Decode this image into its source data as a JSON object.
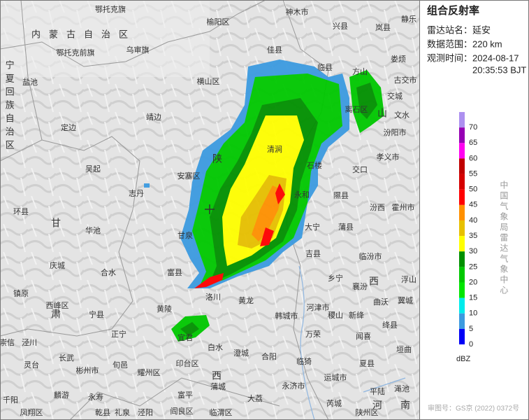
{
  "panel": {
    "title": "组合反射率",
    "fields": [
      {
        "label": "雷达站名：",
        "value": [
          "延安"
        ]
      },
      {
        "label": "数据范围：",
        "value": [
          "220 km"
        ]
      },
      {
        "label": "观测时间：",
        "value": [
          "2024-08-17",
          "20:35:53 BJT"
        ]
      }
    ]
  },
  "legend": {
    "levels": [
      70,
      65,
      60,
      55,
      50,
      45,
      40,
      35,
      30,
      25,
      20,
      15,
      10,
      5,
      0
    ],
    "colors": [
      "#ad90f0",
      "#9600b4",
      "#ff00f0",
      "#c00000",
      "#d60000",
      "#ff0000",
      "#ff9000",
      "#e7c000",
      "#ffff00",
      "#019000",
      "#00c800",
      "#00e600",
      "#00ecec",
      "#3c9be0",
      "#0000f6"
    ],
    "unit": "dBZ"
  },
  "credit": "中国气象局雷达气象中心",
  "approval": "审图号：GS京 (2022) 0372号",
  "regions": [
    "内蒙古自治区",
    "宁夏回族自治区",
    "陕",
    "西",
    "山",
    "西",
    "甘",
    "肃",
    "河",
    "南"
  ],
  "places": [
    "鄂托克旗",
    "神木市",
    "兴县",
    "岚县",
    "静乐",
    "榆阳区",
    "佳县",
    "临县",
    "方山",
    "娄烦",
    "古交市",
    "鄂托克前旗",
    "乌审旗",
    "盐池",
    "横山区",
    "离石区",
    "交城",
    "文水",
    "汾阳市",
    "定边",
    "靖边",
    "孝义市",
    "吴起",
    "安塞区",
    "清涧",
    "石楼",
    "交口",
    "志丹",
    "永和",
    "隰县",
    "汾西",
    "霍州市",
    "环县",
    "华池",
    "甘泉",
    "大宁",
    "蒲县",
    "吉县",
    "临汾市",
    "庆城",
    "合水",
    "富县",
    "乡宁",
    "襄汾",
    "浮山",
    "镇原",
    "西峰区",
    "宁县",
    "黄陵",
    "洛川",
    "黄龙",
    "韩城市",
    "河津市",
    "稷山",
    "新绛",
    "曲沃",
    "翼城",
    "崇信",
    "泾川",
    "正宁",
    "宜君",
    "白水",
    "万荣",
    "闻喜",
    "绛县",
    "灵台",
    "长武",
    "彬州市",
    "旬邑",
    "耀州区",
    "印台区",
    "澄城",
    "合阳",
    "临猗",
    "夏县",
    "垣曲",
    "麟游",
    "永寿",
    "富平",
    "蒲城",
    "大荔",
    "永济市",
    "运城市",
    "平陆",
    "渑池",
    "千阳",
    "凤翔区",
    "乾县",
    "礼泉",
    "泾阳",
    "阎良区",
    "临渭区",
    "芮城",
    "陕州区"
  ]
}
